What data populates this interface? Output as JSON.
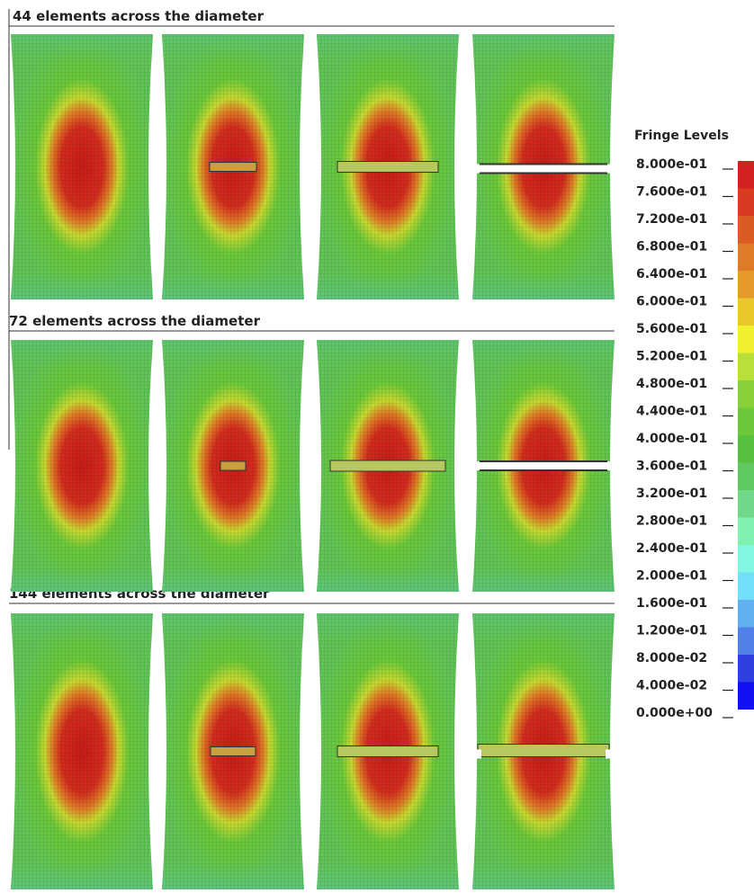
{
  "rows": [
    {
      "title": "44 elements across the diameter"
    },
    {
      "title": "72 elements across the diameter"
    },
    {
      "title": "144 elements across the diameter"
    }
  ],
  "legend": {
    "title": "Fringe Levels",
    "labels": [
      "8.000e-01",
      "7.600e-01",
      "7.200e-01",
      "6.800e-01",
      "6.400e-01",
      "6.000e-01",
      "5.600e-01",
      "5.200e-01",
      "4.800e-01",
      "4.400e-01",
      "4.000e-01",
      "3.600e-01",
      "3.200e-01",
      "2.800e-01",
      "2.400e-01",
      "2.000e-01",
      "1.600e-01",
      "1.200e-01",
      "8.000e-02",
      "4.000e-02",
      "0.000e+00"
    ],
    "colors": [
      "#d42020",
      "#d83a22",
      "#dc5a24",
      "#e07a26",
      "#e49a28",
      "#e8c82a",
      "#f0f030",
      "#b8e038",
      "#88d038",
      "#6cc83a",
      "#58c040",
      "#60c860",
      "#70d888",
      "#80f0b0",
      "#80f8e0",
      "#70e0f8",
      "#60b0f0",
      "#5080e8",
      "#3040e0",
      "#1010f0"
    ]
  }
}
